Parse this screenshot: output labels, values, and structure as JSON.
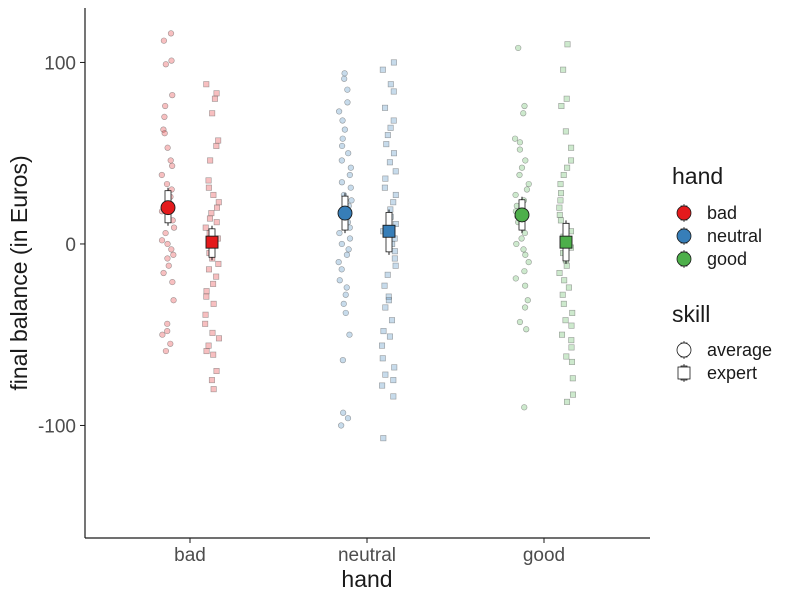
{
  "chart_data": {
    "type": "scatter",
    "xlabel": "hand",
    "ylabel": "final balance (in Euros)",
    "categories": [
      "bad",
      "neutral",
      "good"
    ],
    "ylim": [
      -162,
      130
    ],
    "yticks": [
      100,
      0,
      -100
    ],
    "ytick_labels": [
      "100",
      "0",
      "-100"
    ],
    "grid": false,
    "colors": {
      "bad": "#e41a1c",
      "neutral": "#377eb8",
      "good": "#4daf4a"
    },
    "legend_hand": {
      "title": "hand",
      "entries": [
        {
          "label": "bad",
          "color": "#e41a1c"
        },
        {
          "label": "neutral",
          "color": "#377eb8"
        },
        {
          "label": "good",
          "color": "#4daf4a"
        }
      ]
    },
    "legend_skill": {
      "title": "skill",
      "entries": [
        {
          "label": "average",
          "shape": "circle"
        },
        {
          "label": "expert",
          "shape": "square"
        }
      ]
    },
    "summary": [
      {
        "hand": "bad",
        "skill": "average",
        "mean": 20,
        "ci": [
          10,
          31
        ]
      },
      {
        "hand": "bad",
        "skill": "expert",
        "mean": 1,
        "ci": [
          -9,
          10
        ]
      },
      {
        "hand": "neutral",
        "skill": "average",
        "mean": 17,
        "ci": [
          6,
          28
        ]
      },
      {
        "hand": "neutral",
        "skill": "expert",
        "mean": 7,
        "ci": [
          -6,
          19
        ]
      },
      {
        "hand": "good",
        "skill": "average",
        "mean": 16,
        "ci": [
          6,
          26
        ]
      },
      {
        "hand": "good",
        "skill": "expert",
        "mean": 1,
        "ci": [
          -11,
          13
        ]
      }
    ],
    "points": [
      {
        "hand": "bad",
        "skill": "average",
        "values": [
          116,
          112,
          101,
          99,
          82,
          76,
          70,
          63,
          61,
          53,
          46,
          43,
          38,
          33,
          30,
          26,
          22,
          18,
          13,
          9,
          6,
          2,
          0,
          -3,
          -6,
          -8,
          -12,
          -16,
          -21,
          -31,
          -44,
          -48,
          -50,
          -55,
          -59
        ]
      },
      {
        "hand": "bad",
        "skill": "expert",
        "values": [
          88,
          83,
          80,
          72,
          57,
          54,
          46,
          35,
          31,
          27,
          23,
          20,
          17,
          14,
          12,
          9,
          6,
          3,
          0,
          -5,
          -8,
          -11,
          -14,
          -18,
          -22,
          -26,
          -29,
          -33,
          -39,
          -44,
          -49,
          -52,
          -56,
          -59,
          -61,
          -70,
          -75,
          -80
        ]
      },
      {
        "hand": "neutral",
        "skill": "average",
        "values": [
          94,
          91,
          85,
          78,
          73,
          68,
          63,
          58,
          54,
          50,
          46,
          42,
          38,
          34,
          31,
          27,
          24,
          21,
          18,
          15,
          12,
          9,
          6,
          3,
          0,
          -3,
          -6,
          -10,
          -14,
          -20,
          -24,
          -28,
          -33,
          -38,
          -50,
          -64,
          -93,
          -96,
          -100
        ]
      },
      {
        "hand": "neutral",
        "skill": "expert",
        "values": [
          100,
          96,
          88,
          84,
          75,
          68,
          64,
          60,
          55,
          50,
          45,
          40,
          36,
          31,
          27,
          23,
          19,
          15,
          11,
          7,
          3,
          0,
          -4,
          -8,
          -12,
          -17,
          -23,
          -29,
          -31,
          -35,
          -42,
          -48,
          -51,
          -56,
          -63,
          -68,
          -72,
          -75,
          -78,
          -84,
          -107
        ]
      },
      {
        "hand": "good",
        "skill": "average",
        "values": [
          108,
          76,
          72,
          58,
          56,
          52,
          46,
          42,
          38,
          33,
          30,
          27,
          24,
          21,
          18,
          15,
          12,
          9,
          6,
          3,
          0,
          -3,
          -6,
          -10,
          -15,
          -19,
          -23,
          -31,
          -35,
          -43,
          -47,
          -90
        ]
      },
      {
        "hand": "good",
        "skill": "expert",
        "values": [
          110,
          96,
          80,
          76,
          62,
          53,
          46,
          42,
          38,
          33,
          28,
          24,
          20,
          16,
          13,
          10,
          7,
          4,
          1,
          -2,
          -5,
          -9,
          -12,
          -16,
          -20,
          -24,
          -28,
          -33,
          -38,
          -42,
          -45,
          -50,
          -53,
          -57,
          -62,
          -65,
          -74,
          -83,
          -87
        ]
      }
    ]
  }
}
